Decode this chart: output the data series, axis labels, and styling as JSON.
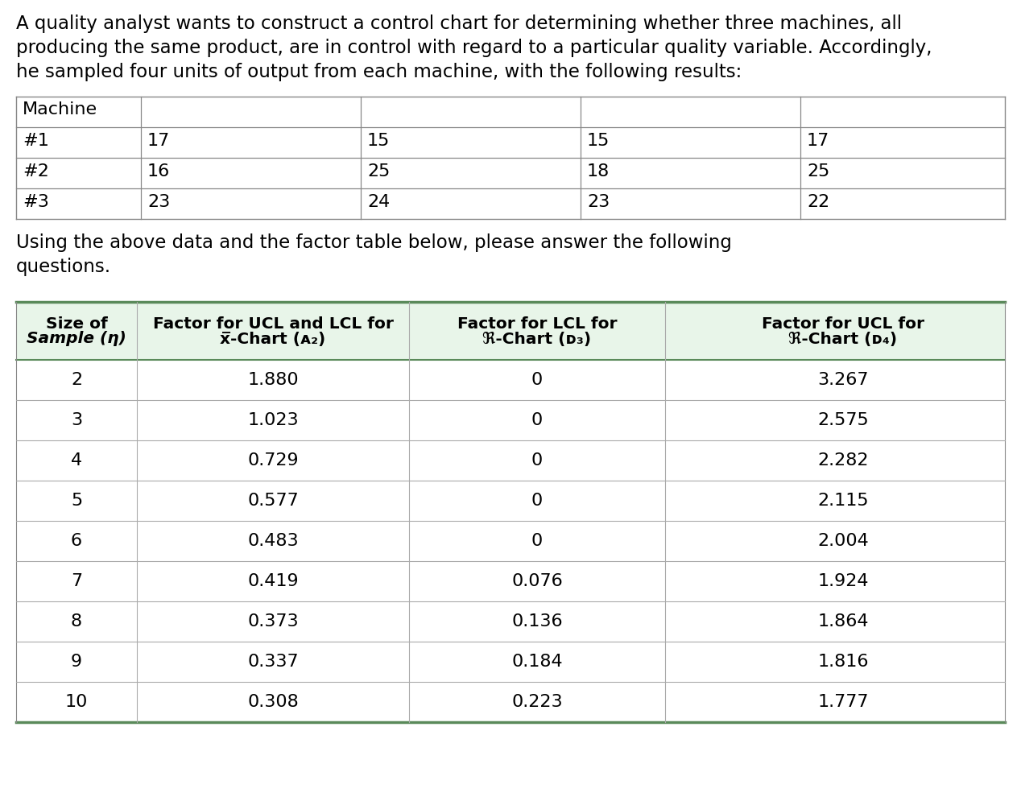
{
  "intro_text": [
    "A quality analyst wants to construct a control chart for determining whether three machines, all",
    "producing the same product, are in control with regard to a particular quality variable. Accordingly,",
    "he sampled four units of output from each machine, with the following results:"
  ],
  "machine_table": {
    "header": [
      "Machine",
      "",
      "",
      "",
      ""
    ],
    "rows": [
      [
        "#1",
        "17",
        "15",
        "15",
        "17"
      ],
      [
        "#2",
        "16",
        "25",
        "18",
        "25"
      ],
      [
        "#3",
        "23",
        "24",
        "23",
        "22"
      ]
    ]
  },
  "middle_text": [
    "Using the above data and the factor table below, please answer the following",
    "questions."
  ],
  "factor_table": {
    "col1_header_line1": "Size of",
    "col1_header_line2": "Sample (",
    "col1_header_n": "n",
    "col1_header_line2_end": ")",
    "col2_header_line1": "Factor for UCL and LCL for",
    "col2_header_line2_pre": "",
    "col2_header_line2_xbar": "x̅",
    "col2_header_line2_mid": "-Chart (",
    "col2_header_line2_sub": "A",
    "col2_header_line2_subsub": "2",
    "col2_header_line2_end": ")",
    "col3_header_line1": "Factor for LCL for",
    "col3_header_line2_pre": "",
    "col3_header_line2_italic": "R",
    "col3_header_line2_mid": "-Chart (",
    "col3_header_line2_sub": "D",
    "col3_header_line2_subsub": "3",
    "col3_header_line2_end": ")",
    "col4_header_line1": "Factor for UCL for",
    "col4_header_line2_italic": "R",
    "col4_header_line2_mid": "-Chart (",
    "col4_header_line2_sub": "D",
    "col4_header_line2_subsub": "4",
    "col4_header_line2_end": ")",
    "rows": [
      [
        "2",
        "1.880",
        "0",
        "3.267"
      ],
      [
        "3",
        "1.023",
        "0",
        "2.575"
      ],
      [
        "4",
        "0.729",
        "0",
        "2.282"
      ],
      [
        "5",
        "0.577",
        "0",
        "2.115"
      ],
      [
        "6",
        "0.483",
        "0",
        "2.004"
      ],
      [
        "7",
        "0.419",
        "0.076",
        "1.924"
      ],
      [
        "8",
        "0.373",
        "0.136",
        "1.864"
      ],
      [
        "9",
        "0.337",
        "0.184",
        "1.816"
      ],
      [
        "10",
        "0.308",
        "0.223",
        "1.777"
      ]
    ],
    "header_bg": "#e8f5e9",
    "border_color_top_bottom": "#5a8a5a",
    "border_color_sides": "#888888",
    "divider_color": "#aaaaaa"
  },
  "bg_color": "#ffffff",
  "text_color": "#000000",
  "machine_border_color": "#888888",
  "intro_fontsize": 16.5,
  "table_fontsize": 16.0,
  "factor_header_fontsize": 14.5,
  "factor_data_fontsize": 16.0
}
